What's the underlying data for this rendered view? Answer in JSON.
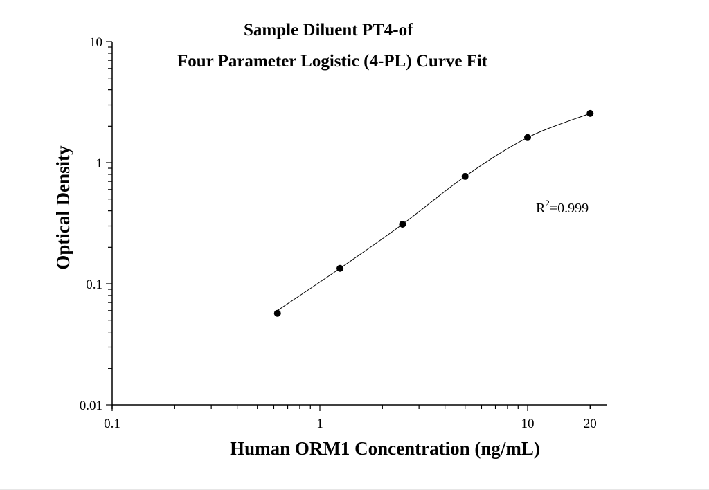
{
  "chart_data": {
    "type": "scatter",
    "title": [
      "Sample Diluent PT4-of",
      "Four Parameter Logistic (4-PL) Curve Fit"
    ],
    "xlabel": "Human ORM1 Concentration (ng/mL)",
    "ylabel": "Optical Density",
    "xscale": "log",
    "yscale": "log",
    "xlim": [
      0.1,
      24
    ],
    "ylim": [
      0.01,
      10
    ],
    "xticks": [
      "0.1",
      "1",
      "10",
      "20"
    ],
    "xtick_values": [
      0.1,
      1,
      10,
      20
    ],
    "yticks": [
      "0.01",
      "0.1",
      "1",
      "10"
    ],
    "ytick_values": [
      0.01,
      0.1,
      1,
      10
    ],
    "grid": false,
    "series": [
      {
        "x": [
          0.625,
          1.25,
          2.5,
          5,
          10,
          20
        ],
        "y": [
          0.057,
          0.134,
          0.31,
          0.77,
          1.61,
          2.55
        ],
        "marker": "filled-circle",
        "fit": "4-PL curve",
        "color": "#000000"
      }
    ],
    "annotation": {
      "base": "R",
      "sup": "2",
      "rest": "=0.999"
    }
  }
}
